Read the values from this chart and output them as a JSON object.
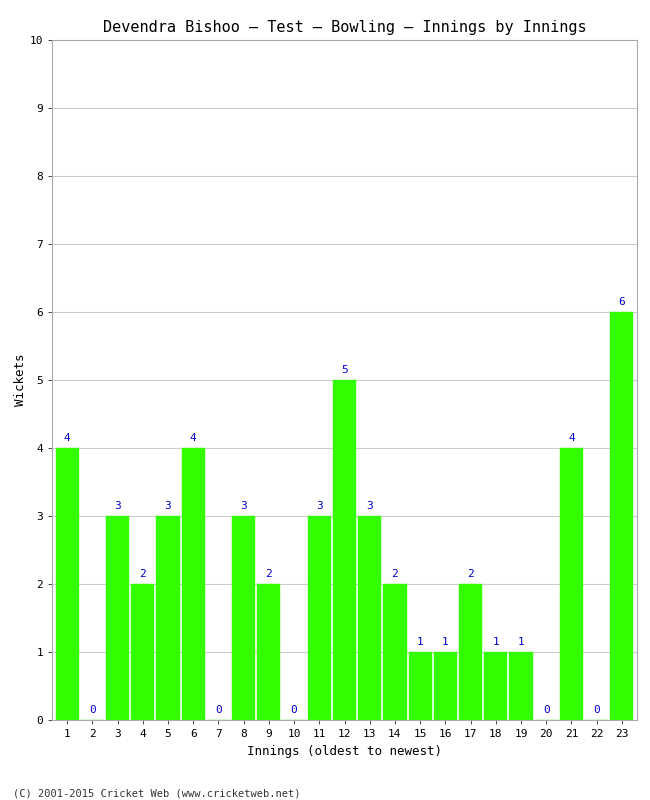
{
  "title": "Devendra Bishoo – Test – Bowling – Innings by Innings",
  "xlabel": "Innings (oldest to newest)",
  "ylabel": "Wickets",
  "innings": [
    1,
    2,
    3,
    4,
    5,
    6,
    7,
    8,
    9,
    10,
    11,
    12,
    13,
    14,
    15,
    16,
    17,
    18,
    19,
    20,
    21,
    22,
    23
  ],
  "wickets": [
    4,
    0,
    3,
    2,
    3,
    4,
    0,
    3,
    2,
    0,
    3,
    5,
    3,
    2,
    1,
    1,
    2,
    1,
    1,
    0,
    4,
    0,
    6
  ],
  "bar_color": "#33FF00",
  "label_color": "#0000CC",
  "ylim": [
    0,
    10
  ],
  "yticks": [
    0,
    1,
    2,
    3,
    4,
    5,
    6,
    7,
    8,
    9,
    10
  ],
  "bg_color": "#FFFFFF",
  "grid_color": "#CCCCCC",
  "footer": "(C) 2001-2015 Cricket Web (www.cricketweb.net)",
  "title_fontsize": 11,
  "label_fontsize": 9,
  "tick_fontsize": 8,
  "bar_label_fontsize": 8,
  "bar_width": 0.92
}
